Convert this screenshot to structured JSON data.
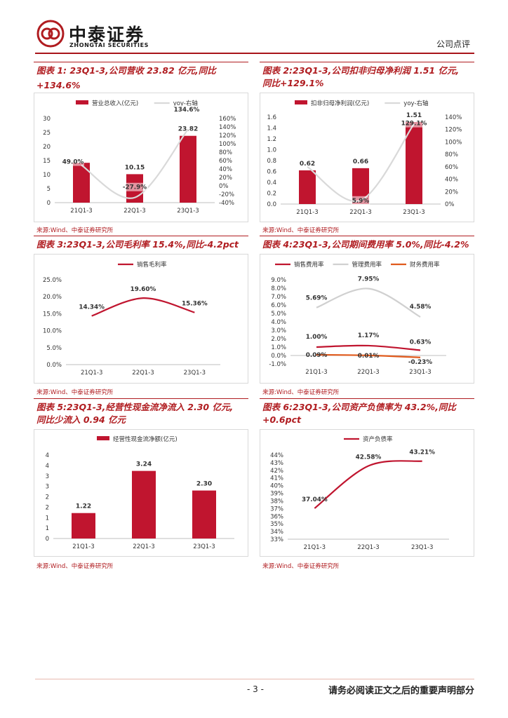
{
  "header": {
    "logo_cn": "中泰证券",
    "logo_en": "ZHONGTAI SECURITIES",
    "report_type": "公司点评",
    "brand_color": "#b01c20"
  },
  "footer": {
    "page_number": "- 3 -",
    "note": "请务必阅读正文之后的重要声明部分"
  },
  "panels": [
    {
      "title": "图表 1: 23Q1-3,公司营收 23.82 亿元,同比+134.6%",
      "source": "来源:Wind、中泰证券研究所"
    },
    {
      "title_line1": "图表 2:23Q1-3,公司扣非归母净利润 1.51 亿元,",
      "title_line2": "同比+129.1%",
      "source": "来源:Wind、中泰证券研究所"
    },
    {
      "title": "图表 3:23Q1-3,公司毛利率 15.4%,同比-4.2pct",
      "source": "来源:Wind、中泰证券研究所"
    },
    {
      "title": "图表 4:23Q1-3,公司期间费用率 5.0%,同比-4.2%",
      "source": "来源:Wind、中泰证券研究所"
    },
    {
      "title_line1": "图表 5:23Q1-3,经营性现金流净流入 2.30 亿元,",
      "title_line2": "同比少流入 0.94 亿元",
      "source": "来源:Wind、中泰证券研究所"
    },
    {
      "title_line1": "图表 6:23Q1-3,公司资产负债率为 43.2%,同比",
      "title_line2": "+0.6pct",
      "source": "来源:Wind、中泰证券研究所"
    }
  ],
  "chart_data": [
    {
      "type": "bar",
      "categories": [
        "21Q1-3",
        "22Q1-3",
        "23Q1-3"
      ],
      "series": [
        {
          "name": "营业总收入(亿元)",
          "kind": "bar",
          "axis": "left",
          "color": "#c0152f",
          "values": [
            14.2,
            10.15,
            23.82
          ],
          "labels": [
            "",
            "10.15",
            "23.82"
          ]
        },
        {
          "name": "yoy-右轴",
          "kind": "line",
          "axis": "right",
          "color": "#d9d9d9",
          "values": [
            49.0,
            -27.9,
            134.6
          ],
          "labels": [
            "49.0%",
            "-27.9%",
            "134.6%"
          ]
        }
      ],
      "ylim": [
        0,
        30
      ],
      "yticks": [
        "0",
        "5",
        "10",
        "15",
        "20",
        "25",
        "30"
      ],
      "y2lim": [
        -40,
        160
      ],
      "y2ticks": [
        "-40%",
        "-20%",
        "0%",
        "20%",
        "40%",
        "60%",
        "80%",
        "100%",
        "120%",
        "140%",
        "160%"
      ]
    },
    {
      "type": "bar",
      "categories": [
        "21Q1-3",
        "22Q1-3",
        "23Q1-3"
      ],
      "series": [
        {
          "name": "扣非归母净利润(亿元)",
          "kind": "bar",
          "axis": "left",
          "color": "#c0152f",
          "values": [
            0.62,
            0.66,
            1.51
          ],
          "labels": [
            "0.62",
            "0.66",
            "1.51"
          ]
        },
        {
          "name": "yoy-右轴",
          "kind": "line",
          "axis": "right",
          "color": "#d9d9d9",
          "values": [
            60,
            5.9,
            129.1
          ],
          "labels": [
            "",
            "5.9%",
            "129.1%"
          ]
        }
      ],
      "ylim": [
        0,
        1.6
      ],
      "yticks": [
        "0.0",
        "0.2",
        "0.4",
        "0.6",
        "0.8",
        "1.0",
        "1.2",
        "1.4",
        "1.6"
      ],
      "y2lim": [
        0,
        140
      ],
      "y2ticks": [
        "0%",
        "20%",
        "40%",
        "60%",
        "80%",
        "100%",
        "120%",
        "140%"
      ]
    },
    {
      "type": "line",
      "categories": [
        "21Q1-3",
        "22Q1-3",
        "23Q1-3"
      ],
      "series": [
        {
          "name": "销售毛利率",
          "color": "#c0152f",
          "values": [
            14.34,
            19.6,
            15.36
          ],
          "labels": [
            "14.34%",
            "19.60%",
            "15.36%"
          ]
        }
      ],
      "ylim": [
        0,
        25
      ],
      "yticks": [
        "0.0%",
        "5.0%",
        "10.0%",
        "15.0%",
        "20.0%",
        "25.0%"
      ]
    },
    {
      "type": "line",
      "categories": [
        "21Q1-3",
        "22Q1-3",
        "23Q1-3"
      ],
      "series": [
        {
          "name": "销售费用率",
          "color": "#c0152f",
          "values": [
            1.0,
            1.17,
            0.63
          ],
          "labels": [
            "1.00%",
            "1.17%",
            "0.63%"
          ]
        },
        {
          "name": "管理费用率",
          "color": "#d0d0d0",
          "values": [
            5.69,
            7.95,
            4.58
          ],
          "labels": [
            "5.69%",
            "7.95%",
            "4.58%"
          ]
        },
        {
          "name": "财务费用率",
          "color": "#e05a1c",
          "values": [
            0.09,
            0.01,
            -0.23
          ],
          "labels": [
            "0.09%",
            "0.01%",
            "-0.23%"
          ]
        }
      ],
      "ylim": [
        -1,
        9
      ],
      "yticks": [
        "-1.0%",
        "0.0%",
        "1.0%",
        "2.0%",
        "3.0%",
        "4.0%",
        "5.0%",
        "6.0%",
        "7.0%",
        "8.0%",
        "9.0%"
      ]
    },
    {
      "type": "bar",
      "categories": [
        "21Q1-3",
        "22Q1-3",
        "23Q1-3"
      ],
      "series": [
        {
          "name": "经营性现金流净额(亿元)",
          "kind": "bar",
          "axis": "left",
          "color": "#c0152f",
          "values": [
            1.22,
            3.24,
            2.3
          ],
          "labels": [
            "1.22",
            "3.24",
            "2.30"
          ]
        }
      ],
      "ylim": [
        0,
        4
      ],
      "yticks": [
        "0",
        "1",
        "1",
        "2",
        "2",
        "3",
        "3",
        "4",
        "4"
      ]
    },
    {
      "type": "line",
      "categories": [
        "21Q1-3",
        "22Q1-3",
        "23Q1-3"
      ],
      "series": [
        {
          "name": "资产负债率",
          "color": "#c0152f",
          "values": [
            37.04,
            42.58,
            43.21
          ],
          "labels": [
            "37.04%",
            "42.58%",
            "43.21%"
          ]
        }
      ],
      "ylim": [
        33,
        44
      ],
      "yticks": [
        "33%",
        "34%",
        "35%",
        "36%",
        "37%",
        "38%",
        "39%",
        "40%",
        "41%",
        "42%",
        "43%",
        "44%"
      ]
    }
  ]
}
